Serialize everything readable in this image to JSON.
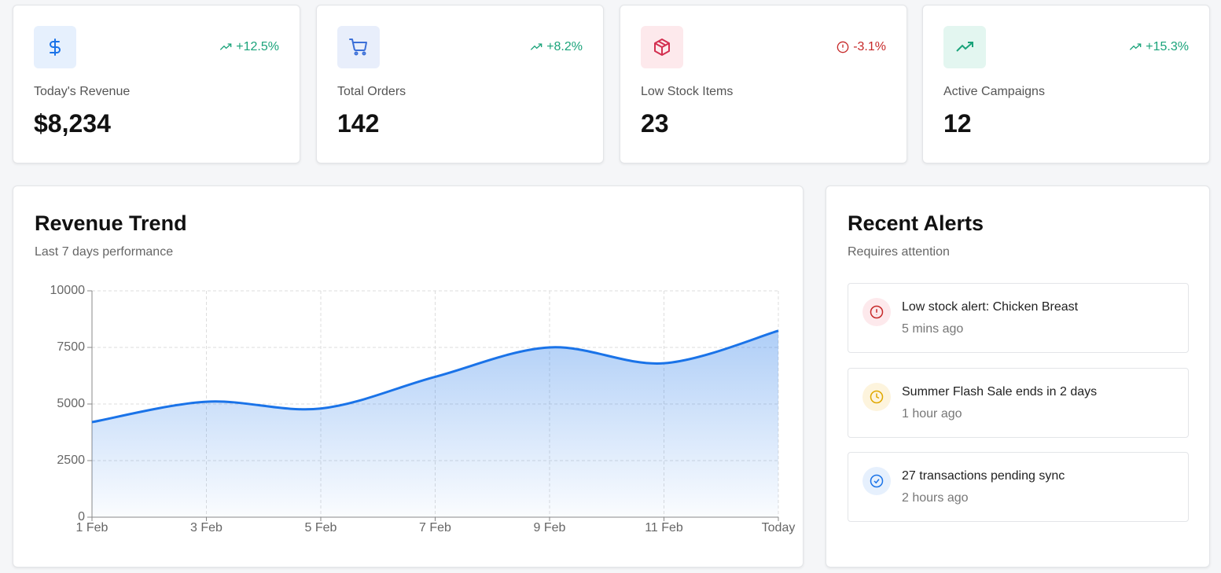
{
  "stats": [
    {
      "label": "Today's Revenue",
      "value": "$8,234",
      "change": "+12.5%"
    },
    {
      "label": "Total Orders",
      "value": "142",
      "change": "+8.2%"
    },
    {
      "label": "Low Stock Items",
      "value": "23",
      "change": "-3.1%"
    },
    {
      "label": "Active Campaigns",
      "value": "12",
      "change": "+15.3%"
    }
  ],
  "revenue_chart": {
    "type": "line",
    "title": "Revenue Trend",
    "subtitle": "Last 7 days performance",
    "categories": [
      "1 Feb",
      "3 Feb",
      "5 Feb",
      "7 Feb",
      "9 Feb",
      "11 Feb",
      "Today"
    ],
    "values": [
      4200,
      5100,
      4800,
      6200,
      7500,
      6800,
      8234
    ],
    "color": "#1a73e8",
    "ylim": [
      0,
      10000
    ],
    "yticks": [
      0,
      2500,
      5000,
      7500,
      10000
    ],
    "grid": true
  },
  "alerts": {
    "title": "Recent Alerts",
    "subtitle": "Requires attention",
    "items": [
      {
        "message": "Low stock alert: Chicken Breast",
        "time": "5 mins ago"
      },
      {
        "message": "Summer Flash Sale ends in 2 days",
        "time": "1 hour ago"
      },
      {
        "message": "27 transactions pending sync",
        "time": "2 hours ago"
      }
    ]
  }
}
